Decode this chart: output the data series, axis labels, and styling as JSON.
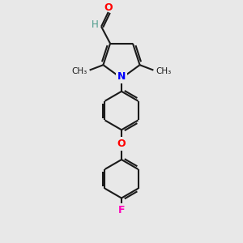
{
  "background_color": "#e8e8e8",
  "bond_color": "#1a1a1a",
  "N_color": "#0000ff",
  "O_color": "#ff0000",
  "F_color": "#ff00bb",
  "H_color": "#4a9a8a",
  "line_width": 1.5,
  "figsize": [
    3.0,
    3.0
  ],
  "dpi": 100,
  "xlim": [
    0,
    10
  ],
  "ylim": [
    0,
    10
  ]
}
